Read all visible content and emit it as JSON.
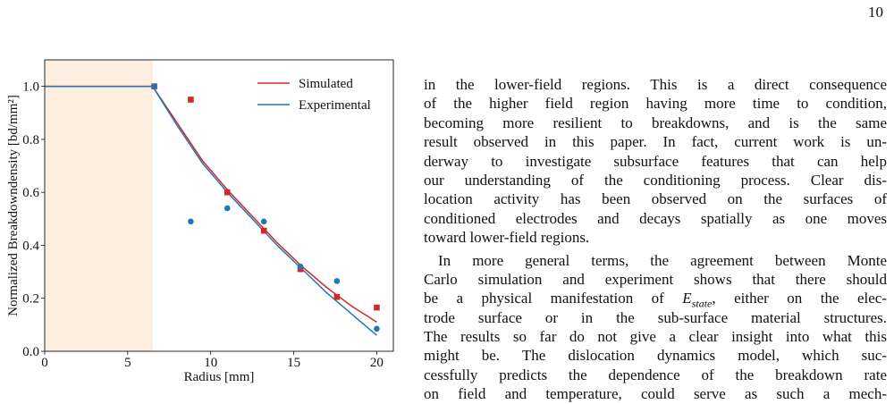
{
  "page_number": "10",
  "chart_data": {
    "type": "line",
    "xlabel": "Radius [mm]",
    "ylabel": "Normalized Breakdowndensity [bd/mm²]",
    "xlim": [
      0,
      21
    ],
    "ylim": [
      0,
      1.1
    ],
    "xticks": [
      0,
      5,
      10,
      15,
      20
    ],
    "yticks": [
      {
        "value": 0,
        "label": "0.0"
      },
      {
        "value": 0.2,
        "label": "0.2"
      },
      {
        "value": 0.4,
        "label": "0.4"
      },
      {
        "value": 0.6,
        "label": "0.6"
      },
      {
        "value": 0.8,
        "label": "0.8"
      },
      {
        "value": 1,
        "label": "1.0"
      }
    ],
    "shade": [
      0,
      6.5
    ],
    "shade_color": "#fdeee0",
    "x": [
      0,
      6.5,
      8,
      9.5,
      11,
      12.5,
      14,
      15.5,
      17,
      18.5,
      20
    ],
    "series": [
      {
        "name": "Simulated",
        "color": "#d62728",
        "values": [
          1,
          1,
          0.86,
          0.72,
          0.61,
          0.51,
          0.41,
          0.32,
          0.24,
          0.17,
          0.11
        ]
      },
      {
        "name": "Experimental",
        "color": "#1f77b4",
        "values": [
          1,
          1,
          0.85,
          0.71,
          0.6,
          0.5,
          0.4,
          0.31,
          0.22,
          0.14,
          0.06
        ]
      }
    ],
    "markers": [
      {
        "shape": "square",
        "color": "#d62728",
        "x": [
          6.6,
          8.8,
          11,
          13.2,
          15.4,
          17.6,
          20
        ],
        "values": [
          1,
          0.95,
          0.6,
          0.455,
          0.31,
          0.205,
          0.165
        ]
      },
      {
        "shape": "circle",
        "color": "#1f77b4",
        "x": [
          6.6,
          8.8,
          11,
          13.2,
          15.4,
          17.6,
          20
        ],
        "values": [
          1,
          0.49,
          0.54,
          0.49,
          0.32,
          0.265,
          0.085
        ]
      }
    ],
    "legend": "upper right"
  },
  "paragraphs": [
    [
      "in the lower-field regions. This is a direct consequence",
      "of the higher field region having more time to condition,",
      "becoming more resilient to breakdowns, and is the same",
      "result observed in this paper. In fact, current work is un-",
      "derway to investigate subsurface features that can help",
      "our understanding of the conditioning process. Clear dis-",
      "location activity has been observed on the surfaces of",
      "conditioned electrodes and decays spatially as one moves",
      "toward lower-field regions."
    ],
    [
      "In more general terms, the agreement between Monte",
      "Carlo simulation and experiment shows that there should",
      {
        "before": "be a physical manifestation of ",
        "math": "E",
        "sub": "state",
        "after": ", either on the elec-"
      },
      "trode surface or in the sub-surface material structures.",
      "The results so far do not give a clear insight into what this",
      "might be. The dislocation dynamics model, which suc-",
      "cessfully predicts the dependence of the breakdown rate",
      "on field and temperature, could serve as such a mech-"
    ]
  ]
}
